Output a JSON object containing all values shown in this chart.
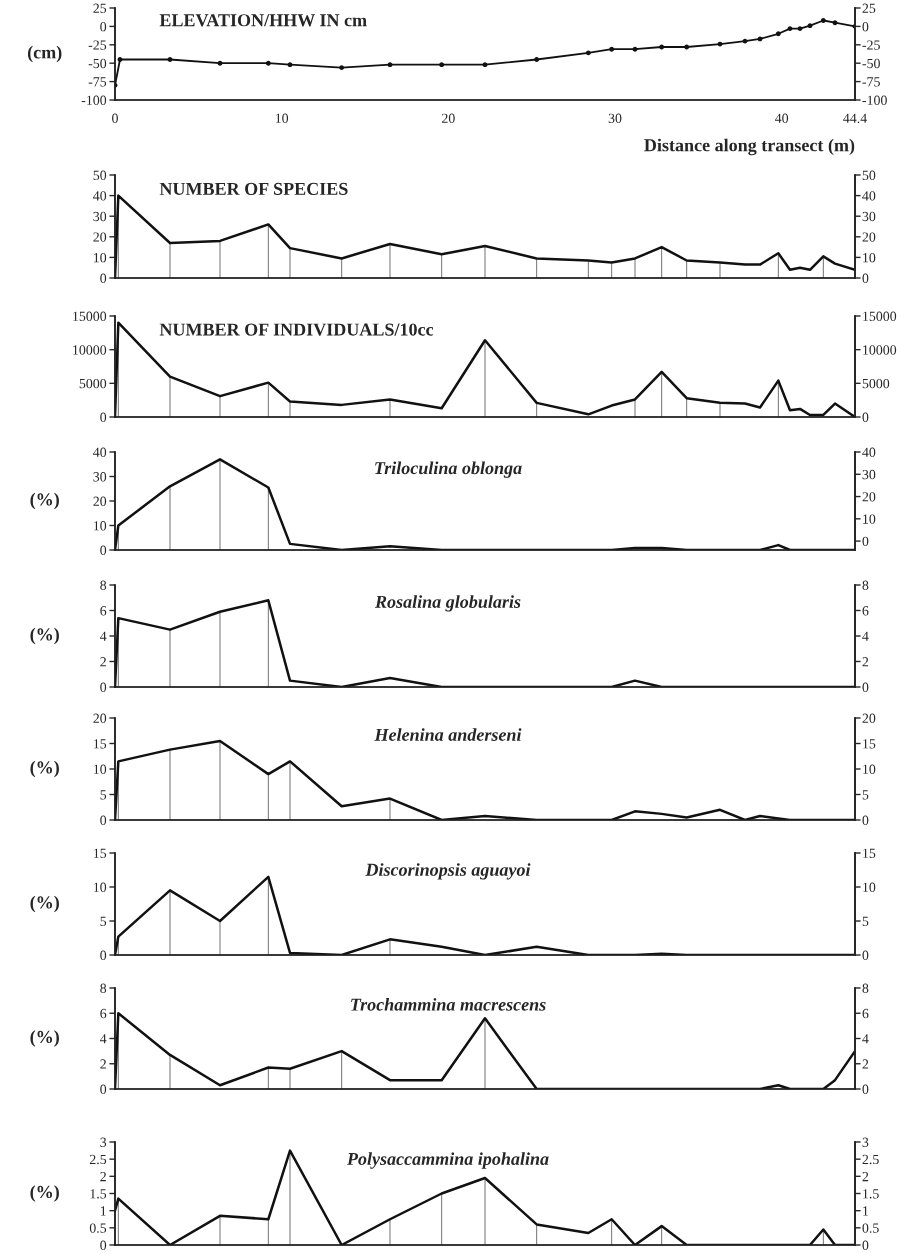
{
  "chart_data": [
    {
      "type": "line",
      "title": "ELEVATION/HHW IN cm",
      "ylabel": "(cm)",
      "xlabel": "Distance along transect (m)",
      "marker": "circle",
      "x": [
        0,
        0.3,
        3.3,
        6.3,
        9.2,
        10.5,
        13.6,
        16.5,
        19.6,
        22.2,
        25.3,
        28.4,
        29.8,
        31.2,
        32.8,
        34.3,
        36.3,
        37.8,
        38.7,
        39.8,
        40.5,
        41.1,
        41.7,
        42.5,
        43.2,
        44.4
      ],
      "series": [
        {
          "color": "#111111",
          "values": [
            -80,
            -45,
            -45,
            -50,
            -50,
            -52,
            -56,
            -52,
            -52,
            -52,
            -45,
            -36,
            -31,
            -31,
            -28,
            -28,
            -24,
            -20,
            -17,
            -10,
            -3,
            -3,
            1,
            8,
            5,
            0
          ]
        }
      ],
      "xlim": [
        0,
        44.4
      ],
      "xticks": [
        0,
        10,
        20,
        30,
        40,
        44.4
      ],
      "ylim": [
        -100,
        25
      ],
      "yticks": [
        -100,
        -75,
        -50,
        -25,
        0,
        25
      ],
      "y2lim": [
        -100,
        25
      ],
      "y2ticks": [
        -100,
        -75,
        -50,
        -25,
        0,
        25
      ]
    },
    {
      "type": "line",
      "title": "NUMBER OF SPECIES",
      "x": [
        0,
        0.2,
        3.3,
        6.3,
        9.2,
        10.5,
        13.6,
        16.5,
        19.6,
        22.2,
        25.3,
        28.4,
        29.8,
        31.2,
        32.8,
        34.3,
        36.3,
        37.8,
        38.7,
        39.8,
        40.5,
        41.1,
        41.7,
        42.5,
        43.2,
        44.4
      ],
      "series": [
        {
          "color": "#111111",
          "values": [
            0,
            40,
            17,
            18,
            26,
            14.5,
            9.5,
            16.5,
            11.5,
            15.5,
            9.5,
            8.5,
            7.5,
            9.5,
            15,
            8.5,
            7.5,
            6.5,
            6.5,
            12,
            4,
            5,
            4,
            10.5,
            7,
            4
          ],
          "errors": [
            null,
            [
              0,
              40
            ],
            [
              0,
              17
            ],
            [
              0,
              18
            ],
            [
              0,
              26
            ],
            [
              0,
              14.5
            ],
            [
              0,
              9.5
            ],
            [
              0,
              16.5
            ],
            [
              0,
              11.5
            ],
            [
              0,
              15.5
            ],
            [
              0,
              9.5
            ],
            [
              0,
              8.5
            ],
            [
              0,
              7.5
            ],
            [
              0,
              9.5
            ],
            [
              0,
              15
            ],
            [
              0,
              8.5
            ],
            [
              0,
              7.5
            ],
            null,
            null,
            [
              0,
              12
            ],
            null,
            null,
            null,
            [
              0,
              10.5
            ],
            null,
            null
          ]
        }
      ],
      "xlim": [
        0,
        44.4
      ],
      "xticks": [
        0,
        10,
        20,
        30,
        40,
        44.4
      ],
      "tick_labels": "y",
      "ylim": [
        0,
        50
      ],
      "yticks": [
        0,
        10,
        20,
        30,
        40,
        50
      ],
      "y2lim": [
        0,
        50
      ],
      "y2ticks": [
        0,
        10,
        20,
        30,
        40,
        50
      ]
    },
    {
      "type": "line",
      "title": "NUMBER OF INDIVIDUALS/10cc",
      "x": [
        0,
        0.2,
        3.3,
        6.3,
        9.2,
        10.5,
        13.6,
        16.5,
        19.6,
        22.2,
        25.3,
        28.4,
        29.8,
        31.2,
        32.8,
        34.3,
        36.3,
        37.8,
        38.7,
        39.8,
        40.5,
        41.1,
        41.7,
        42.5,
        43.2,
        44.4
      ],
      "series": [
        {
          "color": "#111111",
          "values": [
            0,
            14000,
            6000,
            3100,
            5100,
            2300,
            1800,
            2600,
            1300,
            11400,
            2100,
            400,
            1700,
            2600,
            6700,
            2800,
            2100,
            2000,
            1400,
            5400,
            1000,
            1200,
            300,
            300,
            2000,
            0
          ],
          "errors": [
            null,
            [
              0,
              14000
            ],
            [
              0,
              6000
            ],
            [
              0,
              3100
            ],
            [
              0,
              5100
            ],
            [
              0,
              2300
            ],
            null,
            [
              0,
              2600
            ],
            null,
            [
              0,
              11400
            ],
            [
              0,
              2100
            ],
            null,
            null,
            [
              0,
              2600
            ],
            [
              0,
              6700
            ],
            [
              0,
              2800
            ],
            [
              0,
              2100
            ],
            null,
            null,
            [
              0,
              5400
            ],
            null,
            null,
            null,
            null,
            null,
            null
          ]
        }
      ],
      "xlim": [
        0,
        44.4
      ],
      "xticks": [
        0,
        10,
        20,
        30,
        40,
        44.4
      ],
      "tick_labels": "y",
      "ylim": [
        0,
        15000
      ],
      "yticks": [
        0,
        5000,
        10000,
        15000
      ],
      "y2lim": [
        0,
        15000
      ],
      "y2ticks": [
        0,
        5000,
        10000,
        15000
      ]
    },
    {
      "type": "line",
      "title": "Triloculina oblonga",
      "ylabel": "(%)",
      "x": [
        0,
        0.2,
        3.3,
        6.3,
        9.2,
        10.5,
        13.6,
        16.5,
        19.6,
        22.2,
        25.3,
        28.4,
        29.8,
        31.2,
        32.8,
        34.3,
        36.3,
        37.8,
        38.7,
        39.8,
        40.5,
        41.1,
        41.7,
        42.5,
        43.2,
        44.4
      ],
      "series": [
        {
          "color": "#111111",
          "values": [
            0,
            10,
            26,
            37,
            25.5,
            2.5,
            0,
            1.5,
            0,
            0,
            0,
            0,
            0,
            0.8,
            0.8,
            0,
            0,
            0,
            0,
            2,
            0,
            0,
            0,
            0,
            0,
            0
          ],
          "errors": [
            null,
            [
              0,
              10
            ],
            [
              0,
              26
            ],
            [
              0,
              37
            ],
            [
              0,
              25.5
            ],
            null,
            null,
            null,
            null,
            null,
            null,
            null,
            null,
            null,
            null,
            null,
            null,
            null,
            null,
            null,
            null,
            null,
            null,
            null,
            null,
            null
          ]
        }
      ],
      "xlim": [
        0,
        44.4
      ],
      "xticks": [
        0,
        10,
        20,
        30,
        40,
        44.4
      ],
      "tick_labels": "y",
      "ylim": [
        0,
        40
      ],
      "yticks": [
        0,
        10,
        20,
        30,
        40
      ],
      "y2lim": [
        -4,
        40
      ],
      "y2ticks": [
        0,
        10,
        20,
        30,
        40
      ]
    },
    {
      "type": "line",
      "title": "Rosalina globularis",
      "ylabel": "(%)",
      "x": [
        0,
        0.2,
        3.3,
        6.3,
        9.2,
        10.5,
        13.6,
        16.5,
        19.6,
        22.2,
        25.3,
        28.4,
        29.8,
        31.2,
        32.8,
        34.3,
        36.3,
        37.8,
        38.7,
        39.8,
        40.5,
        41.1,
        41.7,
        42.5,
        43.2,
        44.4
      ],
      "series": [
        {
          "color": "#111111",
          "values": [
            0,
            5.4,
            4.5,
            5.9,
            6.8,
            0.5,
            0,
            0.7,
            0,
            0,
            0,
            0,
            0,
            0.5,
            0,
            0,
            0,
            0,
            0,
            0,
            0,
            0,
            0,
            0,
            0,
            0
          ],
          "errors": [
            null,
            [
              0,
              5.4
            ],
            [
              0,
              4.5
            ],
            [
              0,
              5.9
            ],
            [
              0,
              6.8
            ],
            null,
            null,
            null,
            null,
            null,
            null,
            null,
            null,
            null,
            null,
            null,
            null,
            null,
            null,
            null,
            null,
            null,
            null,
            null,
            null,
            null
          ]
        }
      ],
      "xlim": [
        0,
        44.4
      ],
      "xticks": [
        0,
        10,
        20,
        30,
        40,
        44.4
      ],
      "tick_labels": "y",
      "ylim": [
        0,
        8
      ],
      "yticks": [
        0,
        2,
        4,
        6,
        8
      ],
      "y2lim": [
        0,
        8
      ],
      "y2ticks": [
        0,
        2,
        4,
        6,
        8
      ]
    },
    {
      "type": "line",
      "title": "Helenina anderseni",
      "ylabel": "(%)",
      "x": [
        0,
        0.2,
        3.3,
        6.3,
        9.2,
        10.5,
        13.6,
        16.5,
        19.6,
        22.2,
        25.3,
        28.4,
        29.8,
        31.2,
        32.8,
        34.3,
        36.3,
        37.8,
        38.7,
        39.8,
        40.5,
        41.1,
        41.7,
        42.5,
        43.2,
        44.4
      ],
      "series": [
        {
          "color": "#111111",
          "values": [
            0,
            11.5,
            13.8,
            15.5,
            9,
            11.5,
            2.7,
            4.2,
            0,
            0.8,
            0,
            0,
            0,
            1.7,
            1.2,
            0.5,
            2,
            0,
            0.8,
            0.3,
            0,
            0,
            0,
            0,
            0,
            0
          ],
          "errors": [
            null,
            [
              0,
              11.5
            ],
            [
              0,
              13.8
            ],
            [
              0,
              15.5
            ],
            [
              0,
              9
            ],
            [
              0,
              11.5
            ],
            null,
            [
              0,
              4.2
            ],
            null,
            null,
            null,
            null,
            null,
            null,
            null,
            null,
            null,
            null,
            null,
            null,
            null,
            null,
            null,
            null,
            null,
            null
          ]
        }
      ],
      "xlim": [
        0,
        44.4
      ],
      "xticks": [
        0,
        10,
        20,
        30,
        40,
        44.4
      ],
      "tick_labels": "y",
      "ylim": [
        0,
        20
      ],
      "yticks": [
        0,
        5,
        10,
        15,
        20
      ],
      "y2lim": [
        0,
        20
      ],
      "y2ticks": [
        0,
        5,
        10,
        15,
        20
      ]
    },
    {
      "type": "line",
      "title": "Discorinopsis aguayoi",
      "ylabel": "(%)",
      "x": [
        0,
        0.2,
        3.3,
        6.3,
        9.2,
        10.5,
        13.6,
        16.5,
        19.6,
        22.2,
        25.3,
        28.4,
        29.8,
        31.2,
        32.8,
        34.3,
        36.3,
        37.8,
        38.7,
        39.8,
        40.5,
        41.1,
        41.7,
        42.5,
        43.2,
        44.4
      ],
      "series": [
        {
          "color": "#111111",
          "values": [
            0,
            2.7,
            9.5,
            5,
            11.5,
            0.3,
            0,
            2.3,
            1.2,
            0,
            1.2,
            0,
            0,
            0,
            0.2,
            0,
            0,
            0,
            0,
            0,
            0,
            0,
            0,
            0,
            0,
            0
          ],
          "errors": [
            null,
            [
              0,
              2.7
            ],
            [
              0,
              9.5
            ],
            [
              0,
              5
            ],
            [
              0,
              11.5
            ],
            null,
            null,
            [
              0,
              2.3
            ],
            null,
            null,
            null,
            null,
            null,
            null,
            null,
            null,
            null,
            null,
            null,
            null,
            null,
            null,
            null,
            null,
            null,
            null
          ]
        }
      ],
      "xlim": [
        0,
        44.4
      ],
      "xticks": [
        0,
        10,
        20,
        30,
        40,
        44.4
      ],
      "tick_labels": "y",
      "ylim": [
        0,
        15
      ],
      "yticks": [
        0,
        5,
        10,
        15
      ],
      "y2lim": [
        0,
        15
      ],
      "y2ticks": [
        0,
        5,
        10,
        15
      ]
    },
    {
      "type": "line",
      "title": "Trochammina macrescens",
      "ylabel": "(%)",
      "x": [
        0,
        0.2,
        3.3,
        6.3,
        9.2,
        10.5,
        13.6,
        16.5,
        19.6,
        22.2,
        25.3,
        28.4,
        29.8,
        31.2,
        32.8,
        34.3,
        36.3,
        37.8,
        38.7,
        39.8,
        40.5,
        41.1,
        41.7,
        42.5,
        43.2,
        44.4
      ],
      "series": [
        {
          "color": "#111111",
          "values": [
            0,
            6,
            2.7,
            0.3,
            1.7,
            1.6,
            3,
            0.7,
            0.7,
            5.6,
            0,
            0,
            0,
            0,
            0,
            0,
            0,
            0,
            0,
            0.3,
            0,
            0,
            0,
            0,
            0.7,
            3
          ],
          "errors": [
            null,
            [
              0,
              6
            ],
            [
              0,
              2.7
            ],
            null,
            [
              0,
              1.7
            ],
            [
              0,
              1.6
            ],
            [
              0,
              3
            ],
            null,
            null,
            [
              0,
              5.6
            ],
            null,
            null,
            null,
            null,
            null,
            null,
            null,
            null,
            null,
            null,
            null,
            null,
            null,
            null,
            null,
            null
          ]
        }
      ],
      "xlim": [
        0,
        44.4
      ],
      "xticks": [
        0,
        10,
        20,
        30,
        40,
        44.4
      ],
      "tick_labels": "y",
      "ylim": [
        0,
        8
      ],
      "yticks": [
        0,
        2,
        4,
        6,
        8
      ],
      "y2lim": [
        0,
        8
      ],
      "y2ticks": [
        0,
        2,
        4,
        6,
        8
      ]
    },
    {
      "type": "line",
      "title": "Polysaccammina ipohalina",
      "ylabel": "(%)",
      "x": [
        0,
        0.2,
        3.3,
        6.3,
        9.2,
        10.5,
        13.6,
        16.5,
        19.6,
        22.2,
        25.3,
        28.4,
        29.8,
        31.2,
        32.8,
        34.3,
        36.3,
        37.8,
        38.7,
        39.8,
        40.5,
        41.1,
        41.7,
        42.5,
        43.2,
        44.4
      ],
      "series": [
        {
          "color": "#111111",
          "values": [
            1,
            1.35,
            0,
            0.85,
            0.75,
            2.75,
            0,
            0.75,
            1.5,
            1.95,
            0.6,
            0.35,
            0.75,
            0,
            0.55,
            0,
            0,
            0,
            0,
            0,
            0,
            0,
            0,
            0.45,
            0,
            0
          ],
          "errors": [
            null,
            [
              0,
              1.35
            ],
            null,
            [
              0,
              0.85
            ],
            [
              0,
              0.75
            ],
            [
              0,
              2.75
            ],
            null,
            [
              0,
              0.75
            ],
            [
              0,
              1.5
            ],
            [
              0,
              1.95
            ],
            [
              0,
              0.6
            ],
            null,
            [
              0,
              0.75
            ],
            null,
            [
              0,
              0.55
            ],
            null,
            null,
            null,
            null,
            null,
            null,
            null,
            null,
            [
              0,
              0.45
            ],
            null,
            null
          ]
        }
      ],
      "xlim": [
        0,
        44.4
      ],
      "xticks": [
        0,
        10,
        20,
        30,
        40,
        44.4
      ],
      "tick_labels": "y",
      "ylim": [
        0,
        3
      ],
      "yticks": [
        0,
        0.5,
        1,
        1.5,
        2,
        2.5,
        3
      ],
      "y2lim": [
        0,
        3
      ],
      "y2ticks": [
        0,
        0.5,
        1,
        1.5,
        2,
        2.5,
        3
      ]
    }
  ]
}
